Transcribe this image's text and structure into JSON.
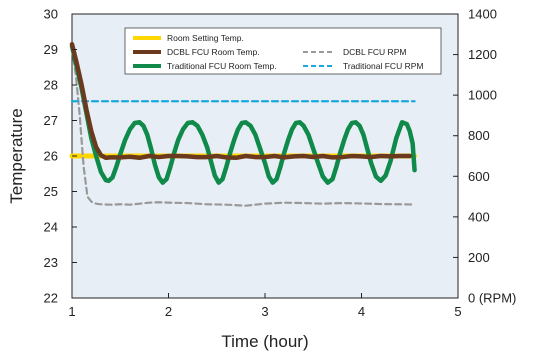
{
  "chart_data": {
    "type": "line",
    "xlabel": "Time (hour)",
    "ylabel": "Temperature",
    "y2label": "",
    "xlim": [
      1,
      5
    ],
    "ylim": [
      22,
      30
    ],
    "y2lim": [
      0,
      1400
    ],
    "xticks": [
      "1",
      "2",
      "3",
      "4",
      "5"
    ],
    "yticks": [
      "22",
      "23",
      "24",
      "25",
      "26",
      "27",
      "28",
      "29",
      "30"
    ],
    "y2ticks": [
      "0 (RPM)",
      "200",
      "400",
      "600",
      "800",
      "1000",
      "1200",
      "1400"
    ],
    "plot_background": "#e8eef6",
    "legend_position": "top-center",
    "series": [
      {
        "name": "Room Setting Temp.",
        "axis": "left",
        "color": "#ffd700",
        "style": "solid",
        "x": [
          1.0,
          4.55
        ],
        "y": [
          26.0,
          26.0
        ]
      },
      {
        "name": "DCBL FCU Room Temp.",
        "axis": "left",
        "color": "#6b3a1e",
        "style": "solid",
        "x": [
          1.0,
          1.05,
          1.1,
          1.15,
          1.2,
          1.25,
          1.3,
          1.35,
          1.4,
          1.5,
          1.6,
          1.7,
          1.8,
          1.9,
          2.0,
          2.1,
          2.2,
          2.3,
          2.4,
          2.5,
          2.6,
          2.7,
          2.8,
          2.9,
          3.0,
          3.1,
          3.2,
          3.3,
          3.4,
          3.5,
          3.6,
          3.7,
          3.8,
          3.9,
          4.0,
          4.1,
          4.2,
          4.3,
          4.4,
          4.5
        ],
        "y": [
          29.15,
          28.6,
          28.0,
          27.3,
          26.7,
          26.25,
          26.02,
          25.95,
          25.96,
          25.96,
          25.98,
          25.95,
          26.0,
          25.97,
          26.0,
          26.0,
          25.99,
          25.97,
          25.97,
          26.0,
          25.96,
          25.95,
          26.0,
          25.97,
          25.97,
          26.0,
          25.96,
          25.99,
          26.0,
          25.97,
          26.0,
          25.96,
          25.97,
          26.0,
          25.99,
          25.97,
          26.0,
          25.99,
          26.0,
          26.0
        ]
      },
      {
        "name": "Traditional FCU Room Temp.",
        "axis": "left",
        "color": "#0f8a4a",
        "style": "solid",
        "x": [
          1.0,
          1.05,
          1.1,
          1.15,
          1.2,
          1.25,
          1.3,
          1.35,
          1.38,
          1.42,
          1.46,
          1.5,
          1.55,
          1.6,
          1.65,
          1.7,
          1.74,
          1.78,
          1.82,
          1.86,
          1.9,
          1.94,
          1.98,
          2.02,
          2.06,
          2.1,
          2.15,
          2.2,
          2.25,
          2.3,
          2.35,
          2.4,
          2.44,
          2.48,
          2.52,
          2.56,
          2.6,
          2.64,
          2.68,
          2.72,
          2.76,
          2.8,
          2.85,
          2.9,
          2.95,
          3.0,
          3.04,
          3.08,
          3.12,
          3.16,
          3.2,
          3.24,
          3.28,
          3.32,
          3.36,
          3.4,
          3.45,
          3.5,
          3.55,
          3.6,
          3.65,
          3.7,
          3.74,
          3.78,
          3.82,
          3.86,
          3.9,
          3.94,
          3.98,
          4.02,
          4.06,
          4.1,
          4.15,
          4.2,
          4.25,
          4.3,
          4.36,
          4.42,
          4.47,
          4.5,
          4.53,
          4.55
        ],
        "y": [
          29.1,
          28.5,
          27.9,
          27.2,
          26.5,
          26.0,
          25.55,
          25.32,
          25.3,
          25.4,
          25.7,
          26.05,
          26.45,
          26.75,
          26.93,
          26.95,
          26.85,
          26.6,
          26.2,
          25.75,
          25.4,
          25.25,
          25.35,
          25.7,
          26.1,
          26.45,
          26.75,
          26.93,
          26.95,
          26.85,
          26.6,
          26.25,
          25.85,
          25.45,
          25.25,
          25.35,
          25.7,
          26.1,
          26.45,
          26.75,
          26.93,
          26.95,
          26.85,
          26.6,
          26.2,
          25.8,
          25.42,
          25.25,
          25.35,
          25.7,
          26.1,
          26.45,
          26.75,
          26.93,
          26.95,
          26.85,
          26.6,
          26.2,
          25.8,
          25.42,
          25.25,
          25.35,
          25.7,
          26.1,
          26.45,
          26.75,
          26.93,
          26.95,
          26.85,
          26.6,
          26.2,
          25.8,
          25.42,
          25.3,
          25.45,
          25.85,
          26.5,
          26.95,
          26.9,
          26.7,
          26.35,
          25.6
        ]
      },
      {
        "name": "DCBL FCU RPM",
        "axis": "right",
        "color": "#999999",
        "style": "dashed",
        "x": [
          1.0,
          1.04,
          1.08,
          1.12,
          1.16,
          1.2,
          1.25,
          1.3,
          1.4,
          1.5,
          1.6,
          1.7,
          1.8,
          1.9,
          2.0,
          2.2,
          2.4,
          2.6,
          2.8,
          3.0,
          3.2,
          3.4,
          3.6,
          3.8,
          4.0,
          4.2,
          4.4,
          4.55
        ],
        "y": [
          1230,
          1100,
          900,
          650,
          500,
          475,
          465,
          462,
          460,
          462,
          460,
          465,
          470,
          472,
          470,
          468,
          462,
          460,
          455,
          465,
          470,
          468,
          465,
          468,
          466,
          463,
          462,
          461
        ]
      },
      {
        "name": "Traditional FCU RPM",
        "axis": "right",
        "color": "#1aa7e0",
        "style": "dashed",
        "x": [
          1.0,
          4.55
        ],
        "y": [
          970,
          970
        ]
      }
    ]
  }
}
